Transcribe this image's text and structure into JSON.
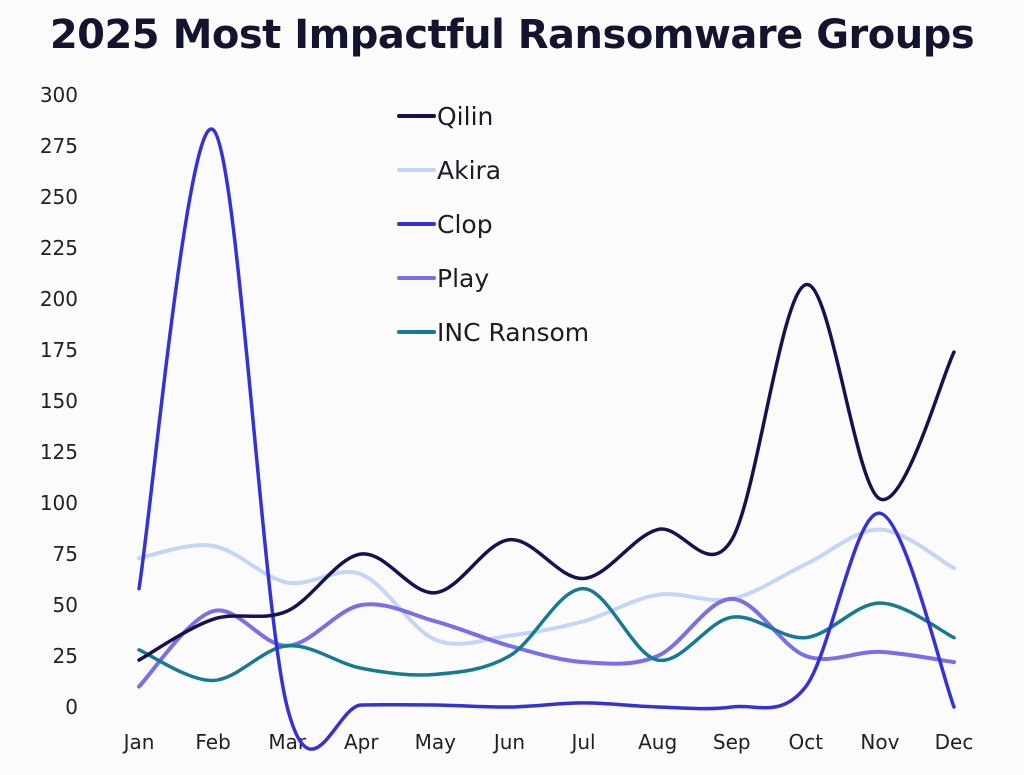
{
  "chart_data": {
    "type": "line",
    "title": "2025 Most Impactful Ransomware Groups",
    "xlabel": "",
    "ylabel": "",
    "categories": [
      "Jan",
      "Feb",
      "Mar",
      "Apr",
      "May",
      "Jun",
      "Jul",
      "Aug",
      "Sep",
      "Oct",
      "Nov",
      "Dec"
    ],
    "ylim": [
      0,
      300
    ],
    "yticks": [
      "0",
      "25",
      "50",
      "75",
      "100",
      "125",
      "150",
      "175",
      "200",
      "225",
      "250",
      "275",
      "300"
    ],
    "ytick_values": [
      0,
      25,
      50,
      75,
      100,
      125,
      150,
      175,
      200,
      225,
      250,
      275,
      300
    ],
    "grid": false,
    "legend_position": "top-center",
    "series": [
      {
        "name": "Qilin",
        "color": "#15134f",
        "values": [
          23,
          43,
          47,
          75,
          56,
          82,
          63,
          87,
          82,
          207,
          102,
          174
        ]
      },
      {
        "name": "Akira",
        "color": "#c3d6f5",
        "values": [
          73,
          79,
          61,
          65,
          33,
          35,
          42,
          55,
          53,
          70,
          87,
          68
        ]
      },
      {
        "name": "Clop",
        "color": "#3631d6",
        "values": [
          58,
          283,
          0,
          1,
          1,
          0,
          2,
          0,
          0,
          10,
          95,
          0
        ]
      },
      {
        "name": "Play",
        "color": "#7b6fe8",
        "values": [
          10,
          47,
          30,
          50,
          42,
          30,
          22,
          25,
          53,
          25,
          27,
          22
        ]
      },
      {
        "name": "INC Ransom",
        "color": "#177a93",
        "values": [
          28,
          13,
          30,
          19,
          16,
          25,
          58,
          23,
          44,
          34,
          51,
          34
        ]
      }
    ]
  }
}
